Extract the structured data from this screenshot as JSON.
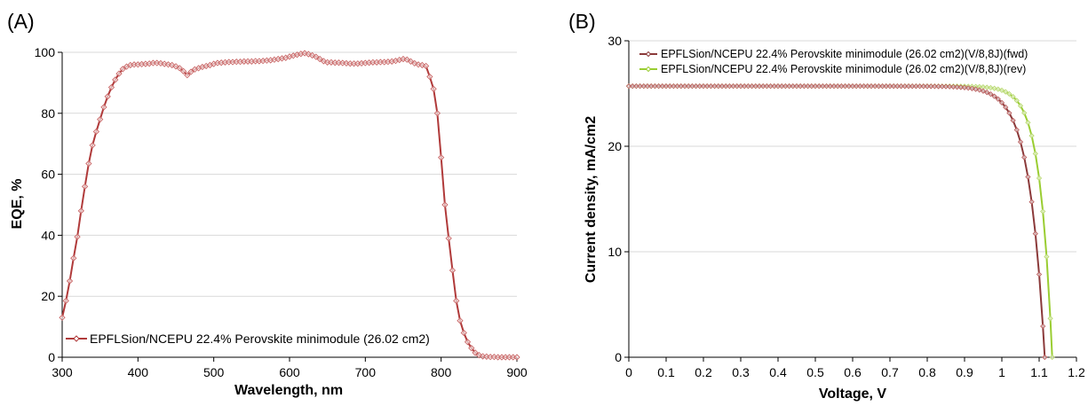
{
  "colors": {
    "fwd_line": "#8b3a3a",
    "fwd_marker": "#b85c5c",
    "rev_line": "#9acd32",
    "rev_marker": "#b8d870",
    "eqe_line": "#b03a3a",
    "eqe_marker": "#c86464",
    "grid": "#d9d9d9",
    "axis": "#000000"
  },
  "chart_data": [
    {
      "panel": "(A)",
      "type": "line",
      "xlabel": "Wavelength, nm",
      "ylabel": "EQE, %",
      "xlim": [
        300,
        900
      ],
      "ylim": [
        0,
        100
      ],
      "xticks": [
        "300",
        "400",
        "500",
        "600",
        "700",
        "800",
        "900"
      ],
      "yticks": [
        "0",
        "20",
        "40",
        "60",
        "80",
        "100"
      ],
      "grid": "horizontal",
      "legend_position": "bottom-left",
      "series": [
        {
          "name": "EPFLSion/NCEPU 22.4% Perovskite minimodule (26.02 cm2)",
          "x": [
            300,
            305,
            310,
            315,
            320,
            325,
            330,
            335,
            340,
            345,
            350,
            355,
            360,
            365,
            370,
            375,
            380,
            385,
            390,
            395,
            400,
            405,
            410,
            415,
            420,
            425,
            430,
            435,
            440,
            445,
            450,
            455,
            460,
            465,
            470,
            475,
            480,
            485,
            490,
            495,
            500,
            505,
            510,
            515,
            520,
            525,
            530,
            535,
            540,
            545,
            550,
            555,
            560,
            565,
            570,
            575,
            580,
            585,
            590,
            595,
            600,
            605,
            610,
            615,
            620,
            625,
            630,
            635,
            640,
            645,
            650,
            655,
            660,
            665,
            670,
            675,
            680,
            685,
            690,
            695,
            700,
            705,
            710,
            715,
            720,
            725,
            730,
            735,
            740,
            745,
            750,
            755,
            760,
            765,
            770,
            775,
            780,
            785,
            790,
            795,
            800,
            805,
            810,
            815,
            820,
            825,
            830,
            835,
            840,
            845,
            850,
            855,
            860,
            865,
            870,
            875,
            880,
            885,
            890,
            895,
            900
          ],
          "y": [
            13,
            18.5,
            25,
            32.5,
            39.5,
            48,
            56,
            63.5,
            69.5,
            74,
            78,
            82,
            85.5,
            88.5,
            91,
            93,
            94.5,
            95.3,
            95.8,
            96,
            96,
            96.1,
            96.2,
            96.3,
            96.5,
            96.5,
            96.4,
            96.2,
            96,
            95.8,
            95.4,
            94.8,
            93.8,
            92.5,
            93.6,
            94.4,
            94.8,
            95.2,
            95.5,
            95.8,
            96.2,
            96.5,
            96.6,
            96.7,
            96.8,
            96.8,
            96.9,
            96.9,
            97,
            97,
            97,
            97.1,
            97.1,
            97.2,
            97.3,
            97.4,
            97.6,
            97.8,
            98,
            98.2,
            98.6,
            98.9,
            99.2,
            99.5,
            99.7,
            99.4,
            99,
            98.5,
            97.8,
            97.1,
            96.7,
            96.7,
            96.6,
            96.6,
            96.5,
            96.4,
            96.3,
            96.3,
            96.3,
            96.4,
            96.5,
            96.6,
            96.7,
            96.7,
            96.8,
            96.8,
            96.9,
            97,
            97.2,
            97.5,
            97.8,
            97.6,
            97,
            96.4,
            96,
            95.8,
            95.5,
            92,
            88,
            80,
            65.5,
            50,
            39,
            28.5,
            18.5,
            12,
            8,
            5,
            3,
            1.5,
            0.7,
            0.3,
            0.2,
            0.1,
            0.1,
            0,
            0,
            0,
            0,
            0,
            0
          ]
        }
      ]
    },
    {
      "panel": "(B)",
      "type": "line",
      "xlabel": "Voltage, V",
      "ylabel": "Current density, mA/cm2",
      "xlim": [
        0,
        1.2
      ],
      "ylim": [
        0,
        30
      ],
      "xticks": [
        "0",
        "0.1",
        "0.2",
        "0.3",
        "0.4",
        "0.5",
        "0.6",
        "0.7",
        "0.8",
        "0.9",
        "1",
        "1.1",
        "1.2"
      ],
      "yticks": [
        "0",
        "10",
        "20",
        "30"
      ],
      "grid": "horizontal",
      "legend_position": "top-left",
      "series": [
        {
          "name": "EPFLSion/NCEPU 22.4% Perovskite minimodule (26.02 cm2)(V/8,8J)(fwd)",
          "jsc": 25.7,
          "voc": 1.115,
          "n": 1.6
        },
        {
          "name": "EPFLSion/NCEPU 22.4% Perovskite minimodule (26.02 cm2)(V/8,8J)(rev)",
          "jsc": 25.7,
          "voc": 1.135,
          "n": 1.26
        }
      ]
    }
  ]
}
